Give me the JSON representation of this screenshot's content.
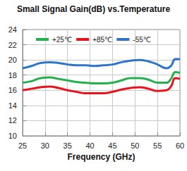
{
  "chart_data": {
    "type": "line",
    "title": "Small Signal Gain(dB) vs.Temperature",
    "x_label": "Frequency (GHz)",
    "x": [
      25,
      27,
      29,
      31,
      33,
      35,
      37,
      39,
      41,
      43,
      45,
      47,
      49,
      51,
      53,
      55,
      57,
      58,
      59,
      60
    ],
    "series": [
      {
        "name": "+25℃",
        "color": "#22b14c",
        "values": [
          17.0,
          17.2,
          17.6,
          17.7,
          17.5,
          17.3,
          17.1,
          17.0,
          16.9,
          16.9,
          17.0,
          17.3,
          17.6,
          17.6,
          17.4,
          17.0,
          17.0,
          17.5,
          18.4,
          18.3
        ]
      },
      {
        "name": "+85℃",
        "color": "#e8141c",
        "values": [
          16.0,
          16.2,
          16.4,
          16.5,
          16.3,
          16.0,
          15.8,
          15.6,
          15.6,
          15.6,
          15.8,
          16.1,
          16.3,
          16.4,
          16.2,
          15.9,
          16.0,
          16.5,
          17.6,
          17.5
        ]
      },
      {
        "name": "-55℃",
        "color": "#2e75c8",
        "values": [
          18.9,
          19.2,
          19.6,
          19.7,
          19.6,
          19.4,
          19.3,
          19.3,
          19.2,
          19.3,
          19.4,
          19.7,
          19.9,
          20.0,
          19.8,
          19.4,
          18.9,
          19.2,
          20.1,
          20.1
        ]
      }
    ],
    "xlim": [
      25,
      60
    ],
    "xticks": [
      25,
      30,
      35,
      40,
      45,
      50,
      55,
      60
    ],
    "ylim": [
      10,
      24
    ],
    "yticks": [
      10,
      12,
      14,
      16,
      18,
      20,
      22,
      24
    ],
    "grid": true,
    "legend": "top"
  }
}
